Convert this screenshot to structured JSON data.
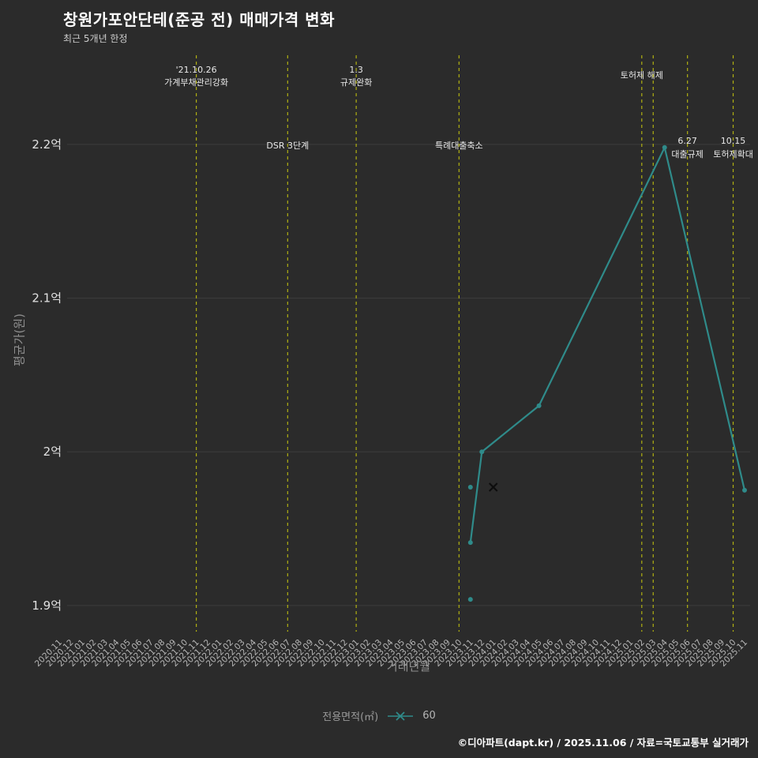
{
  "page": {
    "title": "창원가포안단테(준공 전) 매매가격 변화",
    "subtitle": "최근 5개년 한정",
    "footer": "©디아파트(dapt.kr) / 2025.11.06 / 자료=국토교통부 실거래가"
  },
  "legend": {
    "label": "전용면적(㎡)",
    "series_name": "60",
    "marker_icon": "x-line-marker-icon"
  },
  "colors": {
    "background": "#2b2b2b",
    "line": "#2f8b8a",
    "annotation": "#b0b012",
    "grid": "#3d3d3d",
    "y_tick_text": "#e0e0e0",
    "x_tick_text": "#b8b8b8",
    "event_text": "#e8e8e8",
    "x_marker": "#0d0d0d"
  },
  "chart_data": {
    "type": "line",
    "title": "창원가포안단테(준공 전) 매매가격 변화",
    "xlabel": "거래년월",
    "ylabel": "평균가(원)",
    "ylim": [
      1.883,
      2.258
    ],
    "y_ticks": [
      {
        "value": 2.2,
        "label": "2.2억"
      },
      {
        "value": 2.1,
        "label": "2.1억"
      },
      {
        "value": 2.0,
        "label": "2억"
      },
      {
        "value": 1.9,
        "label": "1.9억"
      }
    ],
    "x_categories": [
      "2020.11",
      "2020.12",
      "2021.01",
      "2021.02",
      "2021.03",
      "2021.04",
      "2021.05",
      "2021.06",
      "2021.07",
      "2021.08",
      "2021.09",
      "2021.10",
      "2021.11",
      "2021.12",
      "2022.01",
      "2022.02",
      "2022.03",
      "2022.04",
      "2022.05",
      "2022.06",
      "2022.07",
      "2022.08",
      "2022.09",
      "2022.10",
      "2022.11",
      "2022.12",
      "2023.01",
      "2023.02",
      "2023.03",
      "2023.04",
      "2023.05",
      "2023.06",
      "2023.07",
      "2023.08",
      "2023.09",
      "2023.10",
      "2023.11",
      "2023.12",
      "2024.01",
      "2024.02",
      "2024.03",
      "2024.04",
      "2024.05",
      "2024.06",
      "2024.07",
      "2024.08",
      "2024.09",
      "2024.10",
      "2024.11",
      "2024.12",
      "2025.01",
      "2025.02",
      "2025.03",
      "2025.04",
      "2025.05",
      "2025.06",
      "2025.07",
      "2025.08",
      "2025.09",
      "2025.10",
      "2025.11"
    ],
    "series": [
      {
        "name": "60",
        "points": [
          [
            "2023.11",
            1.941
          ],
          [
            "2023.12",
            2.0
          ],
          [
            "2024.05",
            2.03
          ],
          [
            "2025.04",
            2.198
          ],
          [
            "2025.11",
            1.975
          ]
        ]
      }
    ],
    "scatter_dots": [
      [
        "2023.11",
        1.977
      ],
      [
        "2023.11",
        1.904
      ]
    ],
    "scatter_x": [
      [
        "2024.01",
        1.977
      ]
    ],
    "annotations": [
      {
        "x": "2021.11",
        "pos": "top",
        "lines": [
          "'21.10.26",
          "가계부채관리강화"
        ]
      },
      {
        "x": "2022.07",
        "pos": "mid",
        "lines": [
          "DSR 3단계"
        ]
      },
      {
        "x": "2023.01",
        "pos": "top",
        "lines": [
          "1.3",
          "규제완화"
        ]
      },
      {
        "x": "2023.10",
        "pos": "mid",
        "lines": [
          "특례대출축소"
        ]
      },
      {
        "x": "2025.02",
        "pos": "top",
        "lines": [
          "토허제 해제"
        ]
      },
      {
        "x": "2025.03",
        "pos": "top",
        "lines": []
      },
      {
        "x": "2025.06",
        "pos": "mid",
        "lines": [
          "6.27",
          "대출규제"
        ]
      },
      {
        "x": "2025.10",
        "pos": "mid",
        "lines": [
          "10.15",
          "토허제확대"
        ]
      }
    ],
    "legend_position": "bottom-center",
    "grid": true
  }
}
